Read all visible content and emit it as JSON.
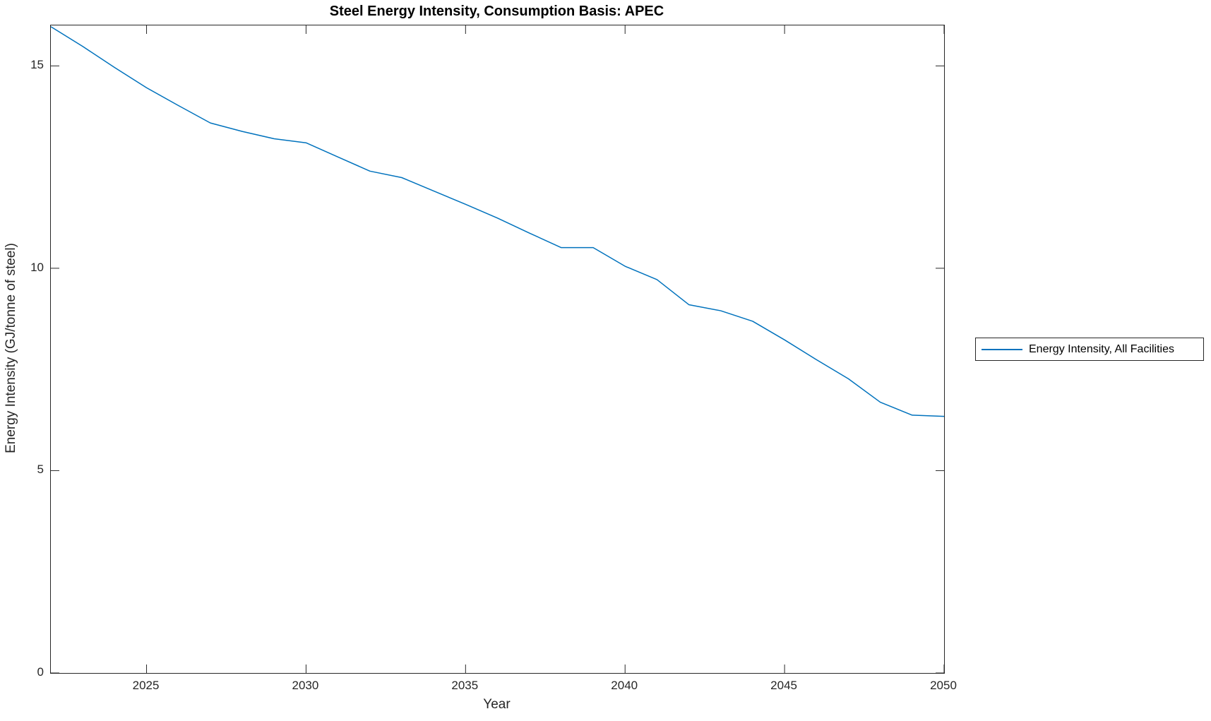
{
  "title": "Steel Energy Intensity, Consumption Basis: APEC",
  "axes": {
    "xlabel": "Year",
    "ylabel": "Energy Intensity (GJ/tonne of steel)"
  },
  "legend": {
    "items": [
      {
        "label": "Energy Intensity, All Facilities",
        "color": "#0072BD"
      }
    ]
  },
  "colors": {
    "line": "#0072BD",
    "axis": "#262626",
    "background": "#ffffff"
  },
  "chart_data": {
    "type": "line",
    "title": "Steel Energy Intensity, Consumption Basis: APEC",
    "xlabel": "Year",
    "ylabel": "Energy Intensity (GJ/tonne of steel)",
    "xlim": [
      2022,
      2050
    ],
    "ylim": [
      0,
      16
    ],
    "x_ticks": [
      2025,
      2030,
      2035,
      2040,
      2045,
      2050
    ],
    "y_ticks": [
      0,
      5,
      10,
      15
    ],
    "grid": false,
    "box": true,
    "tick_direction": "in",
    "legend_position": "outside-right",
    "series": [
      {
        "name": "Energy Intensity, All Facilities",
        "color": "#0072BD",
        "x": [
          2022,
          2023,
          2024,
          2025,
          2026,
          2027,
          2028,
          2029,
          2030,
          2031,
          2032,
          2033,
          2034,
          2035,
          2036,
          2037,
          2038,
          2039,
          2040,
          2041,
          2042,
          2043,
          2044,
          2045,
          2046,
          2047,
          2048,
          2049,
          2050
        ],
        "y": [
          15.97,
          15.48,
          14.96,
          14.46,
          14.02,
          13.59,
          13.38,
          13.2,
          13.1,
          12.75,
          12.4,
          12.24,
          11.91,
          11.58,
          11.24,
          10.87,
          10.51,
          10.51,
          10.05,
          9.72,
          9.1,
          8.95,
          8.69,
          8.23,
          7.74,
          7.27,
          6.69,
          6.37,
          6.34
        ]
      }
    ]
  }
}
